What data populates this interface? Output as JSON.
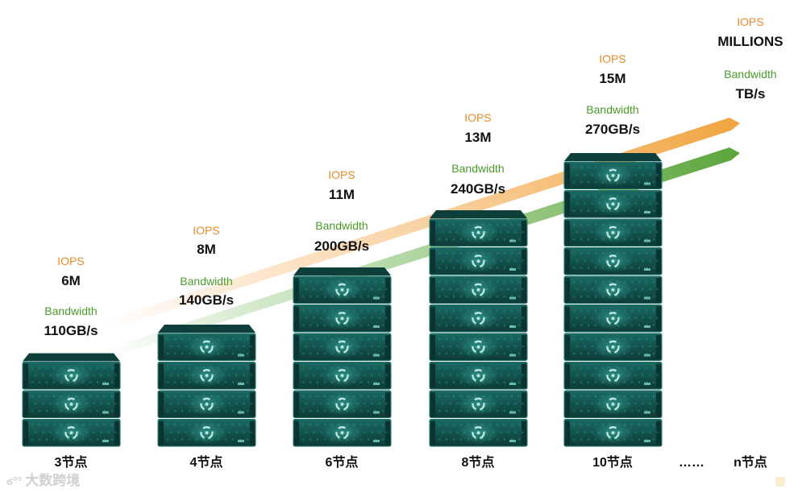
{
  "colors": {
    "iops": "#e8892a",
    "bandwidth": "#4a9a2a",
    "server_face": "#14544f",
    "server_top": "#0e3f3b",
    "server_frame": "#1d6f68",
    "logo": "#b9e6df"
  },
  "clusters": [
    {
      "iops_label": "IOPS",
      "iops_value": "6M",
      "bw_label": "Bandwidth",
      "bw_value": "110GB/s",
      "node_label": "3节点",
      "units": 3
    },
    {
      "iops_label": "IOPS",
      "iops_value": "8M",
      "bw_label": "Bandwidth",
      "bw_value": "140GB/s",
      "node_label": "4节点",
      "units": 4
    },
    {
      "iops_label": "IOPS",
      "iops_value": "11M",
      "bw_label": "Bandwidth",
      "bw_value": "200GB/s",
      "node_label": "6节点",
      "units": 6
    },
    {
      "iops_label": "IOPS",
      "iops_value": "13M",
      "bw_label": "Bandwidth",
      "bw_value": "240GB/s",
      "node_label": "8节点",
      "units": 8
    },
    {
      "iops_label": "IOPS",
      "iops_value": "15M",
      "bw_label": "Bandwidth",
      "bw_value": "270GB/s",
      "node_label": "10节点",
      "units": 10
    }
  ],
  "final": {
    "iops_label": "IOPS",
    "iops_value": "MILLIONS",
    "bw_label": "Bandwidth",
    "bw_value": "TB/s",
    "ellipsis": "……",
    "node_label": "n节点"
  },
  "watermark": {
    "icon": "ant-logo-icon",
    "text": "大数跨境"
  }
}
